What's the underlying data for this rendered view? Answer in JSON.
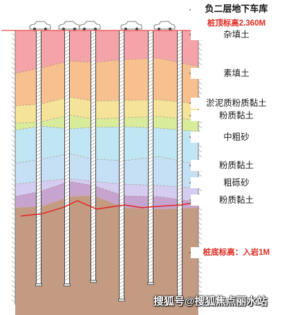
{
  "header": {
    "title": "负二层地下车库",
    "pile_top": "桩顶标高2.360M"
  },
  "layers": [
    {
      "name": "杂填土",
      "color": "#f4a3a8"
    },
    {
      "name": "素填土",
      "color": "#f7c08f"
    },
    {
      "name": "淤泥质粉质黏土",
      "color": "#f5e39a"
    },
    {
      "name": "粉质黏土",
      "color": "#d9ec9c"
    },
    {
      "name": "中粗砂",
      "color": "#bfe6f2"
    },
    {
      "name": "粉质黏土",
      "color": "#c5dff5"
    },
    {
      "name": "粗砾砂",
      "color": "#d5cdf1"
    },
    {
      "name": "粉质黏土",
      "color": "#c7a3cf"
    }
  ],
  "bedrock": {
    "color": "#c39b82"
  },
  "pile_bottom": "桩底标高：入岩1M",
  "watermark": "搜狐号@搜狐焦点丽水站",
  "colors": {
    "pile_top_line": "#e94e4e",
    "rock_line": "#e01f1f",
    "leader": "#111111"
  }
}
